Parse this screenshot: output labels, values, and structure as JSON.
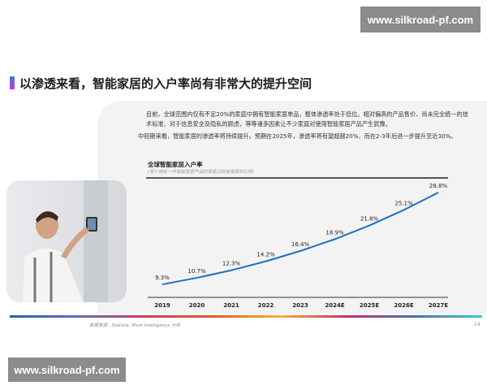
{
  "watermark_top": "www.silkroad-pf.com",
  "watermark_bottom": "www.silkroad-pf.com",
  "title": "以渗透来看，智能家居的入户率尚有非常大的提升空间",
  "paragraph1": "目前，全球范围内仅有不足20%的家庭中拥有智能家居单品，整体渗透率处于低位。相对偏高的产品售价、尚未完全统一的技术标准、对于信息安全及隐私的顾虑，等等诸多因素让不少家庭对使用智能家居产品产生犹豫。",
  "paragraph2": "中短期来看，智能家居的渗透率将持续提升。预期在2025年，渗透率将有望超越20%，而在2-3年后进一步提升至近30%。",
  "source": "数据来源：Statista, Meet Intelligence 分析",
  "page_number": "14",
  "colors": {
    "line": "#1f6fc5",
    "accent_bar": "gradient-multicolor"
  },
  "chart_data": {
    "type": "line",
    "title": "全球智能家居入户率",
    "subtitle": "(至少拥有一件智能家居产品的家庭占所有家庭的比例)",
    "categories": [
      "2019",
      "2020",
      "2021",
      "2022",
      "2023",
      "2024E",
      "2025E",
      "2026E",
      "2027E"
    ],
    "values": [
      9.3,
      10.7,
      12.3,
      14.2,
      16.4,
      18.9,
      21.8,
      25.1,
      28.8
    ],
    "labels": [
      "9.3%",
      "10.7%",
      "12.3%",
      "14.2%",
      "16.4%",
      "18.9%",
      "21.8%",
      "25.1%",
      "28.8%"
    ],
    "ylim": [
      0,
      30
    ],
    "grid": false
  }
}
